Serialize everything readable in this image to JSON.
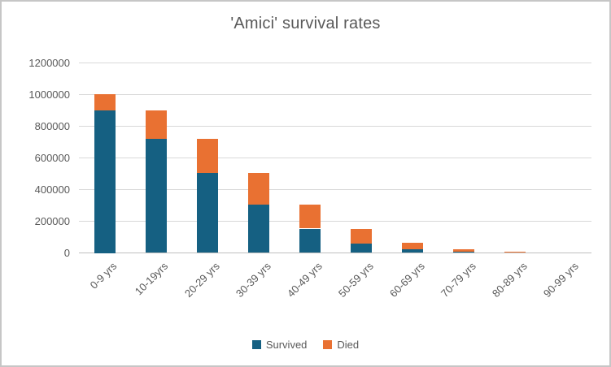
{
  "title": "'Amici' survival rates",
  "chart_data": {
    "type": "bar",
    "stacked": true,
    "title": "'Amici' survival rates",
    "xlabel": "",
    "ylabel": "",
    "categories": [
      "0-9 yrs",
      "10-19yrs",
      "20-29 yrs",
      "30-39 yrs",
      "40-49 yrs",
      "50-59 yrs",
      "60-69 yrs",
      "70-79 yrs",
      "80-89 yrs",
      "90-99 yrs"
    ],
    "series": [
      {
        "name": "Survived",
        "color": "#156082",
        "values": [
          900000,
          720000,
          504000,
          302400,
          151200,
          60480,
          18144,
          3629,
          363,
          0
        ]
      },
      {
        "name": "Died",
        "color": "#E97132",
        "values": [
          100000,
          180000,
          216000,
          201600,
          151200,
          90720,
          42336,
          14515,
          3266,
          363
        ]
      }
    ],
    "ylim": [
      0,
      1200000
    ],
    "yticks": [
      0,
      200000,
      400000,
      600000,
      800000,
      1000000,
      1200000
    ],
    "ytick_labels": [
      "0",
      "200000",
      "400000",
      "600000",
      "800000",
      "1000000",
      "1200000"
    ],
    "grid": true,
    "legend_position": "bottom",
    "gridline_color": "#d9d9d9",
    "axis_line_color": "#bfbfbf",
    "text_color": "#595959",
    "frame_border_color": "#c6c6c6"
  }
}
